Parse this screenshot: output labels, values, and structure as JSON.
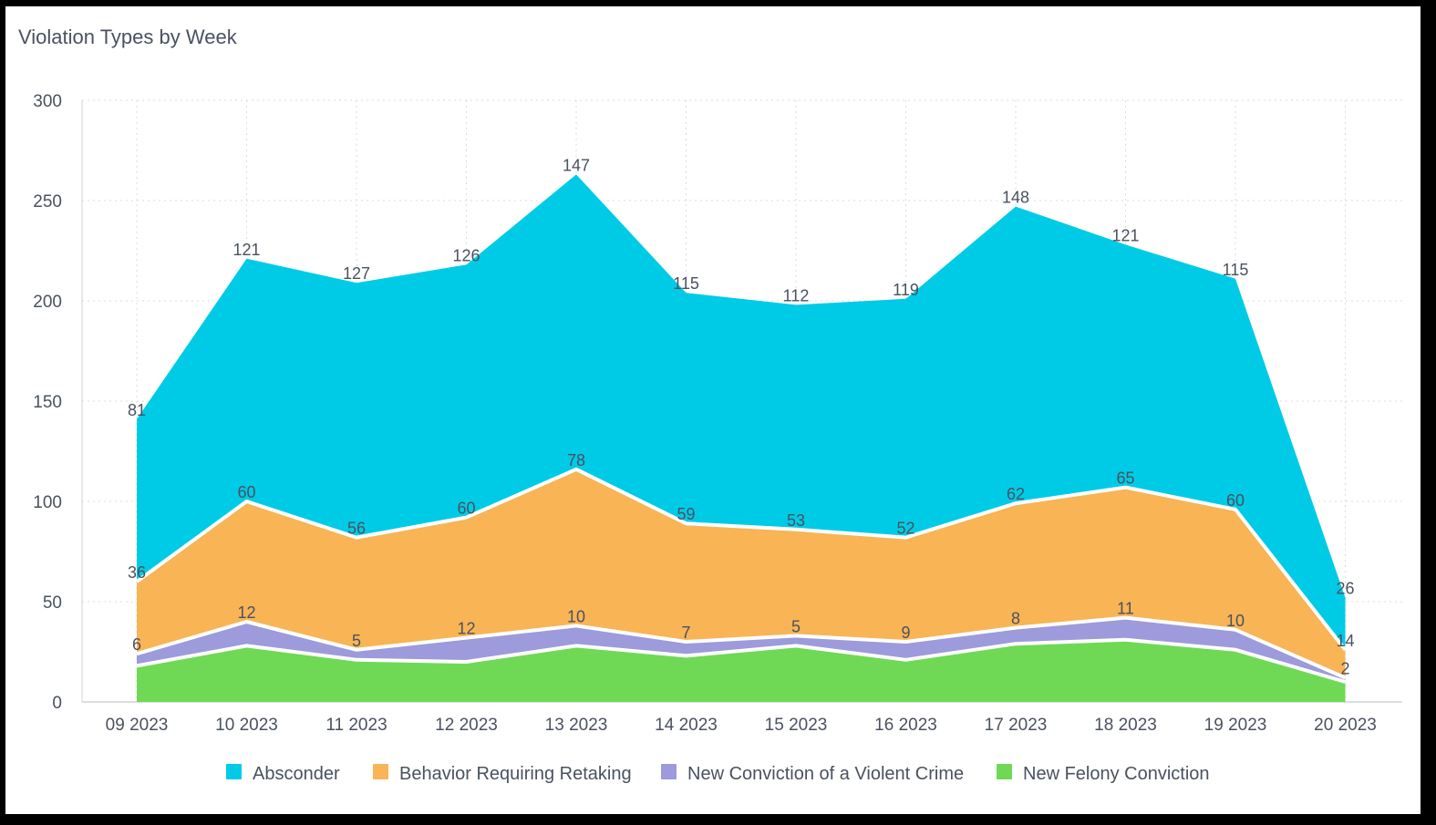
{
  "chart_data": {
    "type": "area",
    "stacked": true,
    "title": "Violation Types by Week",
    "xlabel": "",
    "ylabel": "",
    "ylim": [
      0,
      300
    ],
    "yticks": [
      0,
      50,
      100,
      150,
      200,
      250,
      300
    ],
    "grid": true,
    "legend_position": "bottom",
    "categories": [
      "09 2023",
      "10 2023",
      "11 2023",
      "12 2023",
      "13 2023",
      "14 2023",
      "15 2023",
      "16 2023",
      "17 2023",
      "18 2023",
      "19 2023",
      "20 2023"
    ],
    "series": [
      {
        "name": "New Felony Conviction",
        "color": "#6fd955",
        "values": [
          18,
          28,
          21,
          20,
          28,
          23,
          28,
          21,
          29,
          31,
          26,
          10
        ],
        "labels": [
          null,
          null,
          null,
          null,
          null,
          null,
          null,
          null,
          null,
          null,
          null,
          null
        ]
      },
      {
        "name": "New Conviction of a Violent Crime",
        "color": "#9d9bdb",
        "values": [
          6,
          12,
          5,
          12,
          10,
          7,
          5,
          9,
          8,
          11,
          10,
          2
        ],
        "labels": [
          6,
          12,
          5,
          12,
          10,
          7,
          5,
          9,
          8,
          11,
          10,
          2
        ]
      },
      {
        "name": "Behavior Requiring Retaking",
        "color": "#f8b455",
        "values": [
          36,
          60,
          56,
          60,
          78,
          59,
          53,
          52,
          62,
          65,
          60,
          14
        ],
        "labels": [
          36,
          60,
          56,
          60,
          78,
          59,
          53,
          52,
          62,
          65,
          60,
          14
        ]
      },
      {
        "name": "Absconder",
        "color": "#00cbe6",
        "values": [
          81,
          121,
          127,
          126,
          147,
          115,
          112,
          119,
          148,
          121,
          115,
          26
        ],
        "labels": [
          81,
          121,
          127,
          126,
          147,
          115,
          112,
          119,
          148,
          121,
          115,
          26
        ]
      }
    ],
    "legend_order": [
      "Absconder",
      "Behavior Requiring Retaking",
      "New Conviction of a Violent Crime",
      "New Felony Conviction"
    ]
  }
}
